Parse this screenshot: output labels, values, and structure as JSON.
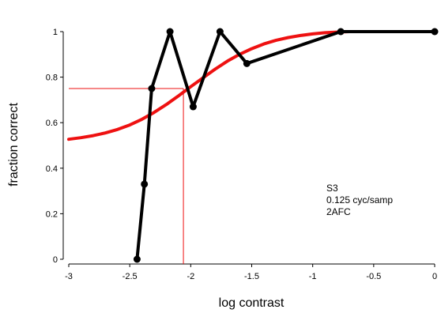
{
  "chart_data": {
    "type": "line",
    "xlabel": "log contrast",
    "ylabel": "fraction correct",
    "xlim": [
      -3,
      0
    ],
    "ylim": [
      0,
      1
    ],
    "x_ticks": [
      -3,
      -2.5,
      -2,
      -1.5,
      -1,
      -0.5,
      0
    ],
    "x_tick_labels": [
      "-3",
      "-2.5",
      "-2",
      "-1.5",
      "-1",
      "-0.5",
      "0"
    ],
    "y_ticks": [
      0,
      0.2,
      0.4,
      0.6,
      0.8,
      1
    ],
    "y_tick_labels": [
      "0",
      "0.2",
      "0.4",
      "0.6",
      "0.8",
      "1"
    ],
    "grid": false,
    "annotations": [
      "S3",
      "0.125 cyc/samp",
      "2AFC"
    ],
    "series": [
      {
        "kind": "data",
        "color": "#000000",
        "markers": true,
        "x": [
          -2.44,
          -2.38,
          -2.32,
          -2.17,
          -1.98,
          -1.76,
          -1.54,
          -0.77,
          0.0
        ],
        "y": [
          0.0,
          0.33,
          0.75,
          1.0,
          0.67,
          1.0,
          0.86,
          1.0,
          1.0
        ]
      },
      {
        "kind": "fit",
        "color": "#ee1111",
        "markers": false,
        "x": [
          -3.0,
          -2.9,
          -2.8,
          -2.7,
          -2.6,
          -2.5,
          -2.4,
          -2.3,
          -2.2,
          -2.1,
          -2.0,
          -1.9,
          -1.8,
          -1.7,
          -1.6,
          -1.5,
          -1.4,
          -1.3,
          -1.2,
          -1.1,
          -1.0,
          -0.9,
          -0.8,
          -0.7,
          -0.6,
          -0.5,
          -0.4,
          -0.3,
          -0.2,
          -0.1,
          0.0
        ],
        "y": [
          0.527,
          0.534,
          0.543,
          0.555,
          0.57,
          0.59,
          0.615,
          0.645,
          0.68,
          0.718,
          0.758,
          0.797,
          0.835,
          0.87,
          0.9,
          0.925,
          0.946,
          0.962,
          0.974,
          0.983,
          0.99,
          0.995,
          0.998,
          1.0,
          1.0,
          1.0,
          1.0,
          1.0,
          1.0,
          1.0,
          1.0
        ]
      }
    ],
    "threshold": {
      "x": -2.06,
      "y": 0.75,
      "color": "#ee1111"
    }
  }
}
